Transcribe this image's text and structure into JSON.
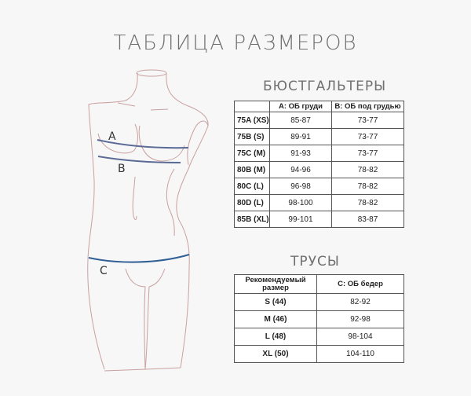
{
  "title": "ТАБЛИЦА РАЗМЕРОВ",
  "figure": {
    "labels": [
      "A",
      "B",
      "C"
    ],
    "outline_color": "#c9a0a0",
    "line_color": "#4a6a9a"
  },
  "bra": {
    "title": "БЮСТГАЛЬТЕРЫ",
    "headers": [
      "",
      "A: ОБ груди",
      "B: ОБ под грудью"
    ],
    "rows": [
      [
        "75A (XS)",
        "85-87",
        "73-77"
      ],
      [
        "75B (S)",
        "89-91",
        "73-77"
      ],
      [
        "75C (M)",
        "91-93",
        "73-77"
      ],
      [
        "80B (M)",
        "94-96",
        "78-82"
      ],
      [
        "80C (L)",
        "96-98",
        "78-82"
      ],
      [
        "80D (L)",
        "98-100",
        "78-82"
      ],
      [
        "85B (XL)",
        "99-101",
        "83-87"
      ]
    ]
  },
  "panties": {
    "title": "ТРУСЫ",
    "headers": [
      "Рекомендуемый размер",
      "C: ОБ бедер"
    ],
    "rows": [
      [
        "S (44)",
        "82-92"
      ],
      [
        "M (46)",
        "92-98"
      ],
      [
        "L (48)",
        "98-104"
      ],
      [
        "XL (50)",
        "104-110"
      ]
    ]
  }
}
